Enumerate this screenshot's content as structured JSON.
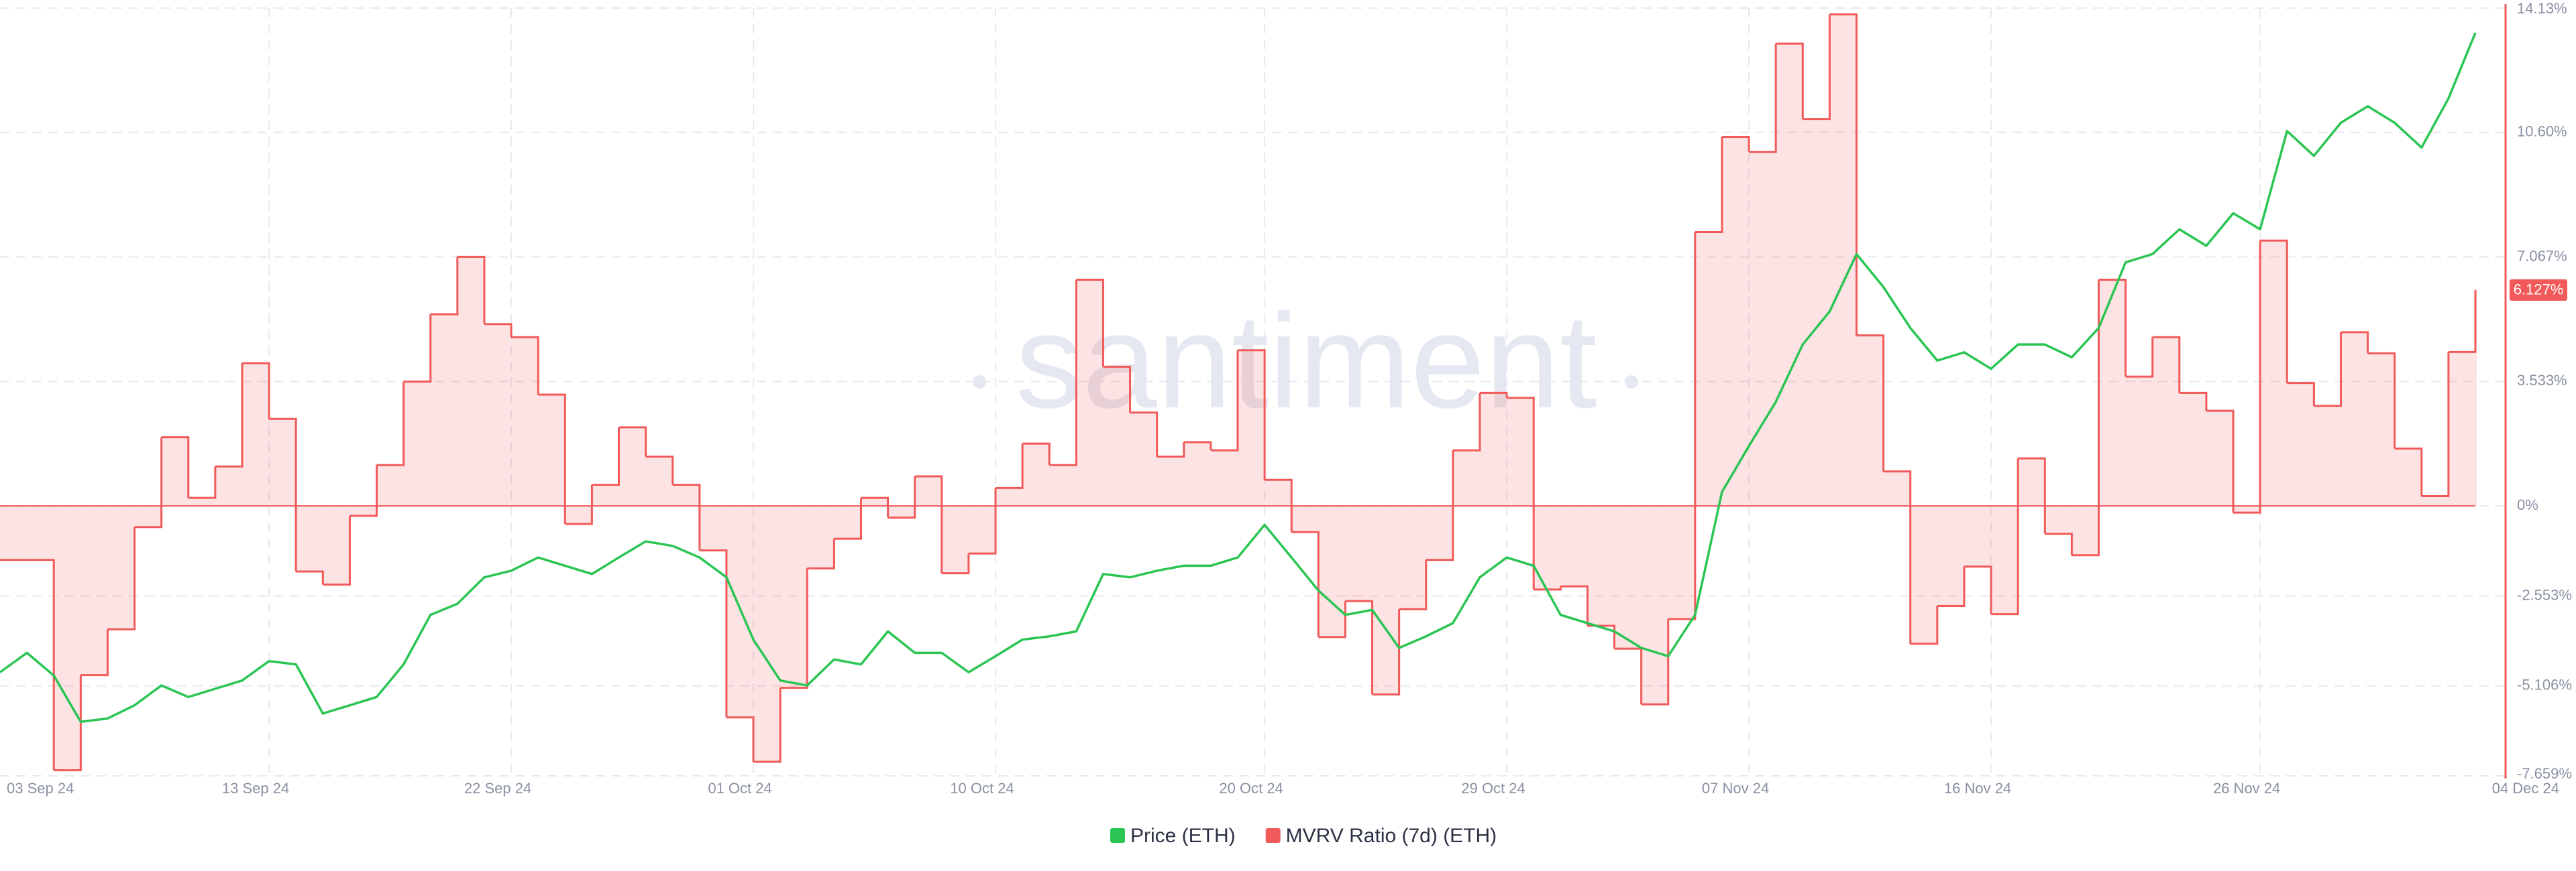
{
  "chart_data": {
    "type": "line",
    "watermark": "santiment",
    "x": [
      "2024-09-03",
      "2024-09-04",
      "2024-09-05",
      "2024-09-06",
      "2024-09-07",
      "2024-09-08",
      "2024-09-09",
      "2024-09-10",
      "2024-09-11",
      "2024-09-12",
      "2024-09-13",
      "2024-09-14",
      "2024-09-15",
      "2024-09-16",
      "2024-09-17",
      "2024-09-18",
      "2024-09-19",
      "2024-09-20",
      "2024-09-21",
      "2024-09-22",
      "2024-09-23",
      "2024-09-24",
      "2024-09-25",
      "2024-09-26",
      "2024-09-27",
      "2024-09-28",
      "2024-09-29",
      "2024-09-30",
      "2024-10-01",
      "2024-10-02",
      "2024-10-03",
      "2024-10-04",
      "2024-10-05",
      "2024-10-06",
      "2024-10-07",
      "2024-10-08",
      "2024-10-09",
      "2024-10-10",
      "2024-10-11",
      "2024-10-12",
      "2024-10-13",
      "2024-10-14",
      "2024-10-15",
      "2024-10-16",
      "2024-10-17",
      "2024-10-18",
      "2024-10-19",
      "2024-10-20",
      "2024-10-21",
      "2024-10-22",
      "2024-10-23",
      "2024-10-24",
      "2024-10-25",
      "2024-10-26",
      "2024-10-27",
      "2024-10-28",
      "2024-10-29",
      "2024-10-30",
      "2024-10-31",
      "2024-11-01",
      "2024-11-02",
      "2024-11-03",
      "2024-11-04",
      "2024-11-05",
      "2024-11-06",
      "2024-11-07",
      "2024-11-08",
      "2024-11-09",
      "2024-11-10",
      "2024-11-11",
      "2024-11-12",
      "2024-11-13",
      "2024-11-14",
      "2024-11-15",
      "2024-11-16",
      "2024-11-17",
      "2024-11-18",
      "2024-11-19",
      "2024-11-20",
      "2024-11-21",
      "2024-11-22",
      "2024-11-23",
      "2024-11-24",
      "2024-11-25",
      "2024-11-26",
      "2024-11-27",
      "2024-11-28",
      "2024-11-29",
      "2024-11-30",
      "2024-12-01",
      "2024-12-02",
      "2024-12-03",
      "2024-12-04"
    ],
    "series": [
      {
        "name": "Price (ETH)",
        "color": "#2bc553",
        "axis": "y2",
        "values": [
          2381,
          2428,
          2373,
          2261,
          2269,
          2301,
          2349,
          2321,
          2341,
          2361,
          2408,
          2400,
          2281,
          2301,
          2321,
          2400,
          2520,
          2547,
          2611,
          2627,
          2659,
          2639,
          2619,
          2659,
          2698,
          2687,
          2659,
          2611,
          2460,
          2361,
          2349,
          2412,
          2400,
          2480,
          2428,
          2428,
          2381,
          2420,
          2460,
          2468,
          2480,
          2619,
          2611,
          2627,
          2639,
          2639,
          2659,
          2738,
          2659,
          2579,
          2520,
          2532,
          2440,
          2468,
          2500,
          2611,
          2659,
          2639,
          2520,
          2500,
          2480,
          2440,
          2420,
          2520,
          2818,
          2929,
          3036,
          3175,
          3255,
          3394,
          3314,
          3215,
          3136,
          3156,
          3116,
          3175,
          3175,
          3144,
          3215,
          3374,
          3394,
          3454,
          3414,
          3493,
          3454,
          3692,
          3632,
          3712,
          3752,
          3712,
          3652,
          3771,
          3930
        ]
      },
      {
        "name": "MVRV Ratio (7d) (ETH)",
        "color": "#f25a5a",
        "values": [
          -1.53,
          -1.53,
          -7.5,
          -4.8,
          -3.5,
          -0.6,
          1.95,
          0.23,
          1.12,
          4.05,
          2.47,
          -1.86,
          -2.23,
          -0.28,
          1.16,
          3.53,
          5.44,
          7.07,
          5.16,
          4.79,
          3.16,
          -0.51,
          0.6,
          2.23,
          1.4,
          0.6,
          -1.26,
          -6.0,
          -7.26,
          -5.16,
          -1.77,
          -0.93,
          0.23,
          -0.33,
          0.84,
          -1.91,
          -1.35,
          0.51,
          1.77,
          1.16,
          6.42,
          3.95,
          2.65,
          1.4,
          1.81,
          1.58,
          4.42,
          0.74,
          -0.74,
          -3.72,
          -2.7,
          -5.35,
          -2.93,
          -1.53,
          1.58,
          3.21,
          3.07,
          -2.37,
          -2.28,
          -3.4,
          -4.05,
          -5.63,
          -3.21,
          7.77,
          10.47,
          10.05,
          13.12,
          10.98,
          13.95,
          4.84,
          0.98,
          -3.91,
          -2.84,
          -1.72,
          -3.07,
          1.35,
          -0.79,
          -1.4,
          6.42,
          3.67,
          4.79,
          3.21,
          2.7,
          -0.19,
          7.53,
          3.49,
          2.84,
          4.93,
          4.33,
          1.63,
          0.28,
          4.37,
          6.127
        ],
        "value_labels": [
          null,
          null,
          null,
          null,
          null,
          null,
          null,
          null,
          null,
          null,
          null,
          null,
          null,
          null,
          null,
          null,
          null,
          null,
          null,
          null,
          null,
          null,
          null,
          null,
          null,
          null,
          null,
          null,
          null,
          null,
          null,
          null,
          null,
          null,
          null,
          null,
          null,
          null,
          null,
          null,
          null,
          null,
          null,
          null,
          null,
          null,
          null,
          null,
          null,
          null,
          null,
          null,
          null,
          null,
          null,
          null,
          null,
          null,
          null,
          null,
          null,
          null,
          null,
          null,
          null,
          null,
          null,
          null,
          null,
          null,
          null,
          null,
          null,
          null,
          null,
          null,
          null,
          null,
          null,
          null,
          null,
          null,
          null,
          null,
          null,
          null,
          null,
          null,
          null,
          null,
          null,
          null,
          "6.127%"
        ]
      }
    ],
    "ylim": [
      -7.659,
      14.13
    ],
    "yticks": [
      {
        "value": -7.659,
        "label": "-7.659%"
      },
      {
        "value": -5.106,
        "label": "-5.106%"
      },
      {
        "value": -2.553,
        "label": "-2.553%"
      },
      {
        "value": 0,
        "label": "0%"
      },
      {
        "value": 3.533,
        "label": "3.533%"
      },
      {
        "value": 7.067,
        "label": "7.067%"
      },
      {
        "value": 10.6,
        "label": "10.60%"
      },
      {
        "value": 14.13,
        "label": "14.13%"
      }
    ],
    "y2lim": [
      2130,
      3990
    ],
    "xticks": [
      {
        "value": "2024-09-03",
        "label": "03 Sep 24"
      },
      {
        "value": "2024-09-13",
        "label": "13 Sep 24"
      },
      {
        "value": "2024-09-22",
        "label": "22 Sep 24"
      },
      {
        "value": "2024-10-01",
        "label": "01 Oct 24"
      },
      {
        "value": "2024-10-10",
        "label": "10 Oct 24"
      },
      {
        "value": "2024-10-20",
        "label": "20 Oct 24"
      },
      {
        "value": "2024-10-29",
        "label": "29 Oct 24"
      },
      {
        "value": "2024-11-07",
        "label": "07 Nov 24"
      },
      {
        "value": "2024-11-16",
        "label": "16 Nov 24"
      },
      {
        "value": "2024-11-26",
        "label": "26 Nov 24"
      },
      {
        "value": "2024-12-04",
        "label": "04 Dec 24"
      }
    ],
    "grid": true
  }
}
